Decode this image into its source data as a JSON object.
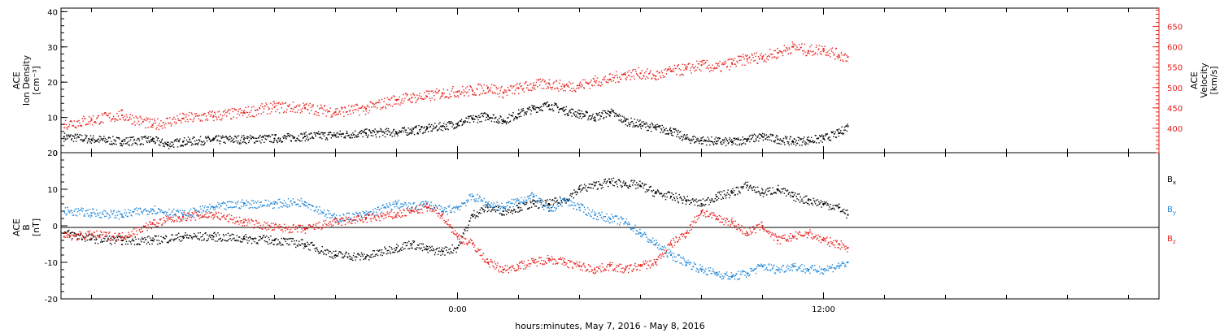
{
  "chart_data": [
    {
      "type": "scatter",
      "panel": "top",
      "left_axis": {
        "label_lines": [
          "ACE",
          "Ion Density",
          "[cm⁻³]"
        ],
        "ylim": [
          0,
          41
        ],
        "ticks": [
          0,
          10,
          20,
          30,
          40
        ],
        "color": "#000000"
      },
      "right_axis": {
        "label_lines": [
          "ACE",
          "Velocity",
          "[km/s]"
        ],
        "ylim": [
          340,
          695
        ],
        "ticks": [
          400,
          450,
          500,
          550,
          600,
          650
        ],
        "color": "#e8201c"
      },
      "series": [
        {
          "axis": "left",
          "color": "#000000",
          "points": [
            [
              -12.9,
              4.5
            ],
            [
              -12,
              3.8
            ],
            [
              -11,
              3.2
            ],
            [
              -10,
              3.6
            ],
            [
              -9.5,
              2.3
            ],
            [
              -9,
              3.1
            ],
            [
              -8,
              3.6
            ],
            [
              -7,
              3.8
            ],
            [
              -6,
              4.0
            ],
            [
              -5,
              4.6
            ],
            [
              -4,
              5.0
            ],
            [
              -3,
              5.5
            ],
            [
              -2,
              5.8
            ],
            [
              -1.5,
              6.3
            ],
            [
              -1,
              6.8
            ],
            [
              -0.5,
              7.5
            ],
            [
              0,
              8.2
            ],
            [
              0.5,
              9.5
            ],
            [
              1,
              10.5
            ],
            [
              1.5,
              9.0
            ],
            [
              2,
              11.0
            ],
            [
              2.5,
              12.5
            ],
            [
              3,
              13.5
            ],
            [
              3.5,
              12.0
            ],
            [
              4,
              11.0
            ],
            [
              4.5,
              10.0
            ],
            [
              5,
              11.5
            ],
            [
              5.5,
              9.0
            ],
            [
              6,
              8.0
            ],
            [
              6.5,
              7.0
            ],
            [
              7,
              6.2
            ],
            [
              7.5,
              4.0
            ],
            [
              8,
              3.5
            ],
            [
              8.5,
              3.2
            ],
            [
              9,
              3.0
            ],
            [
              9.5,
              3.8
            ],
            [
              10,
              4.5
            ],
            [
              10.5,
              3.8
            ],
            [
              11,
              3.2
            ],
            [
              11.5,
              3.5
            ],
            [
              12,
              4.0
            ],
            [
              12.5,
              5.5
            ],
            [
              12.8,
              7.5
            ]
          ]
        },
        {
          "axis": "right",
          "color": "#e8201c",
          "points": [
            [
              -12.9,
              410
            ],
            [
              -12,
              420
            ],
            [
              -11,
              432
            ],
            [
              -10,
              408
            ],
            [
              -9,
              424
            ],
            [
              -8,
              430
            ],
            [
              -7,
              438
            ],
            [
              -6,
              452
            ],
            [
              -5,
              450
            ],
            [
              -4,
              440
            ],
            [
              -3,
              448
            ],
            [
              -2,
              470
            ],
            [
              -1.5,
              475
            ],
            [
              -1,
              478
            ],
            [
              -0.5,
              486
            ],
            [
              0,
              490
            ],
            [
              0.5,
              492
            ],
            [
              1,
              500
            ],
            [
              1.5,
              488
            ],
            [
              2,
              498
            ],
            [
              2.5,
              505
            ],
            [
              3,
              510
            ],
            [
              3.5,
              502
            ],
            [
              4,
              505
            ],
            [
              4.5,
              515
            ],
            [
              5,
              520
            ],
            [
              5.5,
              532
            ],
            [
              6,
              535
            ],
            [
              6.5,
              528
            ],
            [
              7,
              540
            ],
            [
              7.5,
              545
            ],
            [
              8,
              555
            ],
            [
              8.5,
              548
            ],
            [
              9,
              560
            ],
            [
              9.5,
              570
            ],
            [
              10,
              575
            ],
            [
              10.5,
              585
            ],
            [
              11,
              600
            ],
            [
              11.5,
              590
            ],
            [
              12,
              595
            ],
            [
              12.5,
              580
            ],
            [
              12.8,
              575
            ]
          ]
        }
      ]
    },
    {
      "type": "scatter",
      "panel": "bottom",
      "left_axis": {
        "label_lines": [
          "ACE",
          "B",
          "[nT]"
        ],
        "ylim": [
          -20,
          20
        ],
        "ticks": [
          -20,
          -10,
          0,
          10,
          20
        ],
        "color": "#000000"
      },
      "legend": [
        {
          "label": "Bx",
          "color": "#000000"
        },
        {
          "label": "By",
          "color": "#1f86d8"
        },
        {
          "label": "Bz",
          "color": "#e8201c"
        }
      ],
      "series": [
        {
          "name": "Bx",
          "color": "#000000",
          "points": [
            [
              -12.9,
              -2
            ],
            [
              -12,
              -3.5
            ],
            [
              -11,
              -4
            ],
            [
              -10,
              -4
            ],
            [
              -9,
              -3
            ],
            [
              -8,
              -3
            ],
            [
              -7,
              -3.5
            ],
            [
              -6,
              -4
            ],
            [
              -5,
              -5
            ],
            [
              -4,
              -8
            ],
            [
              -3,
              -8.5
            ],
            [
              -2,
              -6
            ],
            [
              -1.5,
              -5
            ],
            [
              -1,
              -6.5
            ],
            [
              -0.5,
              -7
            ],
            [
              0,
              -6
            ],
            [
              0.5,
              3
            ],
            [
              1,
              5
            ],
            [
              1.5,
              4
            ],
            [
              2,
              5
            ],
            [
              2.5,
              6
            ],
            [
              3,
              6
            ],
            [
              3.5,
              7
            ],
            [
              4,
              10
            ],
            [
              4.5,
              11
            ],
            [
              5,
              12
            ],
            [
              5.5,
              11.5
            ],
            [
              6,
              11
            ],
            [
              6.5,
              9
            ],
            [
              7,
              8
            ],
            [
              7.5,
              7
            ],
            [
              8,
              6
            ],
            [
              8.5,
              8
            ],
            [
              9,
              9
            ],
            [
              9.5,
              11
            ],
            [
              10,
              9
            ],
            [
              10.5,
              10
            ],
            [
              11,
              8
            ],
            [
              11.5,
              7
            ],
            [
              12,
              6
            ],
            [
              12.5,
              5
            ],
            [
              12.8,
              3
            ]
          ]
        },
        {
          "name": "By",
          "color": "#1f86d8",
          "points": [
            [
              -12.9,
              4
            ],
            [
              -12,
              3.5
            ],
            [
              -11,
              3
            ],
            [
              -10,
              4.5
            ],
            [
              -9,
              3
            ],
            [
              -8,
              5
            ],
            [
              -7,
              6
            ],
            [
              -6,
              6
            ],
            [
              -5,
              6.5
            ],
            [
              -4,
              2
            ],
            [
              -3,
              3
            ],
            [
              -2,
              6
            ],
            [
              -1.5,
              5
            ],
            [
              -1,
              6
            ],
            [
              -0.5,
              4
            ],
            [
              0,
              5
            ],
            [
              0.5,
              8
            ],
            [
              1,
              6
            ],
            [
              1.5,
              5
            ],
            [
              2,
              7
            ],
            [
              2.5,
              8
            ],
            [
              3,
              4
            ],
            [
              3.5,
              7
            ],
            [
              4,
              5
            ],
            [
              4.5,
              3
            ],
            [
              5,
              2
            ],
            [
              5.5,
              1
            ],
            [
              6,
              -2
            ],
            [
              6.5,
              -5
            ],
            [
              7,
              -8
            ],
            [
              7.5,
              -10
            ],
            [
              8,
              -12
            ],
            [
              8.5,
              -13
            ],
            [
              9,
              -14
            ],
            [
              9.5,
              -13
            ],
            [
              10,
              -11
            ],
            [
              10.5,
              -12
            ],
            [
              11,
              -11
            ],
            [
              11.5,
              -12
            ],
            [
              12,
              -12
            ],
            [
              12.5,
              -11
            ],
            [
              12.8,
              -10
            ]
          ]
        },
        {
          "name": "Bz",
          "color": "#e8201c",
          "points": [
            [
              -12.9,
              -3
            ],
            [
              -12,
              -2.5
            ],
            [
              -11,
              -3
            ],
            [
              -10,
              0.5
            ],
            [
              -9,
              2.5
            ],
            [
              -8,
              3
            ],
            [
              -7,
              1
            ],
            [
              -6,
              -0.5
            ],
            [
              -5,
              -1
            ],
            [
              -4,
              1
            ],
            [
              -3,
              2
            ],
            [
              -2,
              3
            ],
            [
              -1.5,
              4
            ],
            [
              -1,
              5
            ],
            [
              -0.5,
              3
            ],
            [
              0,
              -3
            ],
            [
              0.5,
              -5
            ],
            [
              1,
              -10
            ],
            [
              1.5,
              -12
            ],
            [
              2,
              -11
            ],
            [
              2.5,
              -10
            ],
            [
              3,
              -9
            ],
            [
              3.5,
              -10
            ],
            [
              4,
              -11
            ],
            [
              4.5,
              -12
            ],
            [
              5,
              -11
            ],
            [
              5.5,
              -12
            ],
            [
              6,
              -11
            ],
            [
              6.5,
              -10
            ],
            [
              7,
              -5
            ],
            [
              7.5,
              -2
            ],
            [
              8,
              4
            ],
            [
              8.5,
              2
            ],
            [
              9,
              1
            ],
            [
              9.5,
              -2
            ],
            [
              10,
              0
            ],
            [
              10.5,
              -4
            ],
            [
              11,
              -3
            ],
            [
              11.5,
              -2
            ],
            [
              12,
              -4
            ],
            [
              12.5,
              -5
            ],
            [
              12.8,
              -6
            ]
          ]
        }
      ]
    }
  ],
  "x_axis": {
    "label": "hours:minutes,  May  7, 2016 - May  8, 2016",
    "range_hours": [
      -13,
      23
    ],
    "tick_labels": [
      {
        "hours": 0,
        "label": "0:00"
      },
      {
        "hours": 12,
        "label": "12:00"
      }
    ],
    "minor_every_hours": 2
  }
}
